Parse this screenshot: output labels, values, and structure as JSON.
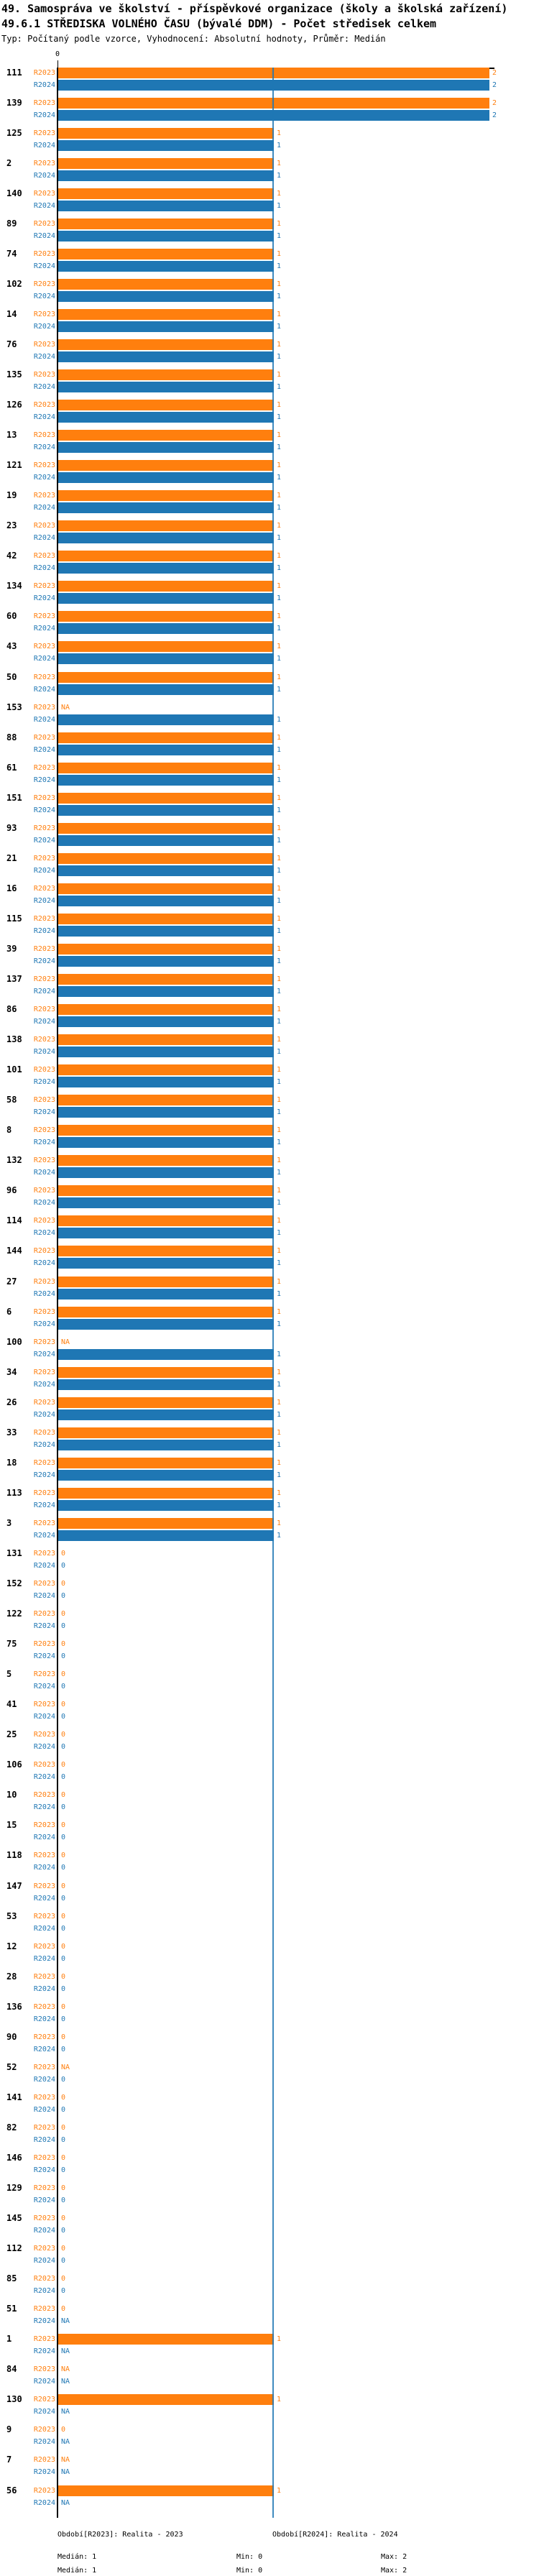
{
  "header": {
    "title_line1": "49. Samospráva ve školství - příspěvkové organizace (školy a školská zařízení)",
    "title_line2": "49.6.1 STŘEDISKA VOLNÉHO ČASU (bývalé DDM) - Počet středisek celkem",
    "meta_line": "Typ: Počítaný podle vzorce, Vyhodnocení: Absolutní hodnoty, Průměr: Medián"
  },
  "axis": {
    "zero_tick_label": "0"
  },
  "colors": {
    "r2023": "#ff7f0e",
    "r2024": "#1f77b4",
    "axis": "#000000",
    "median_line": "rgba(31,119,180,0.85)"
  },
  "legend": {
    "r2023": {
      "period": "Období[R2023]: Realita - 2023",
      "median": "Medián: 1",
      "min": "Min: 0",
      "max": "Max: 2"
    },
    "r2024": {
      "period": "Období[R2024]: Realita - 2024",
      "median": "Medián: 1",
      "min": "Min: 0",
      "max": "Max: 2"
    }
  },
  "chart_data": {
    "type": "bar",
    "orientation": "horizontal",
    "series_names": [
      "R2023",
      "R2024"
    ],
    "xlim": [
      0,
      2
    ],
    "median_line_x": 1,
    "na_text": "NA",
    "rows": [
      {
        "code": "111",
        "r2023": 2,
        "r2024": 2
      },
      {
        "code": "139",
        "r2023": 2,
        "r2024": 2
      },
      {
        "code": "125",
        "r2023": 1,
        "r2024": 1
      },
      {
        "code": "2",
        "r2023": 1,
        "r2024": 1
      },
      {
        "code": "140",
        "r2023": 1,
        "r2024": 1
      },
      {
        "code": "89",
        "r2023": 1,
        "r2024": 1
      },
      {
        "code": "74",
        "r2023": 1,
        "r2024": 1
      },
      {
        "code": "102",
        "r2023": 1,
        "r2024": 1
      },
      {
        "code": "14",
        "r2023": 1,
        "r2024": 1
      },
      {
        "code": "76",
        "r2023": 1,
        "r2024": 1
      },
      {
        "code": "135",
        "r2023": 1,
        "r2024": 1
      },
      {
        "code": "126",
        "r2023": 1,
        "r2024": 1
      },
      {
        "code": "13",
        "r2023": 1,
        "r2024": 1
      },
      {
        "code": "121",
        "r2023": 1,
        "r2024": 1
      },
      {
        "code": "19",
        "r2023": 1,
        "r2024": 1
      },
      {
        "code": "23",
        "r2023": 1,
        "r2024": 1
      },
      {
        "code": "42",
        "r2023": 1,
        "r2024": 1
      },
      {
        "code": "134",
        "r2023": 1,
        "r2024": 1
      },
      {
        "code": "60",
        "r2023": 1,
        "r2024": 1
      },
      {
        "code": "43",
        "r2023": 1,
        "r2024": 1
      },
      {
        "code": "50",
        "r2023": 1,
        "r2024": 1
      },
      {
        "code": "153",
        "r2023": "NA",
        "r2024": 1
      },
      {
        "code": "88",
        "r2023": 1,
        "r2024": 1
      },
      {
        "code": "61",
        "r2023": 1,
        "r2024": 1
      },
      {
        "code": "151",
        "r2023": 1,
        "r2024": 1
      },
      {
        "code": "93",
        "r2023": 1,
        "r2024": 1
      },
      {
        "code": "21",
        "r2023": 1,
        "r2024": 1
      },
      {
        "code": "16",
        "r2023": 1,
        "r2024": 1
      },
      {
        "code": "115",
        "r2023": 1,
        "r2024": 1
      },
      {
        "code": "39",
        "r2023": 1,
        "r2024": 1
      },
      {
        "code": "137",
        "r2023": 1,
        "r2024": 1
      },
      {
        "code": "86",
        "r2023": 1,
        "r2024": 1
      },
      {
        "code": "138",
        "r2023": 1,
        "r2024": 1
      },
      {
        "code": "101",
        "r2023": 1,
        "r2024": 1
      },
      {
        "code": "58",
        "r2023": 1,
        "r2024": 1
      },
      {
        "code": "8",
        "r2023": 1,
        "r2024": 1
      },
      {
        "code": "132",
        "r2023": 1,
        "r2024": 1
      },
      {
        "code": "96",
        "r2023": 1,
        "r2024": 1
      },
      {
        "code": "114",
        "r2023": 1,
        "r2024": 1
      },
      {
        "code": "144",
        "r2023": 1,
        "r2024": 1
      },
      {
        "code": "27",
        "r2023": 1,
        "r2024": 1
      },
      {
        "code": "6",
        "r2023": 1,
        "r2024": 1
      },
      {
        "code": "100",
        "r2023": "NA",
        "r2024": 1
      },
      {
        "code": "34",
        "r2023": 1,
        "r2024": 1
      },
      {
        "code": "26",
        "r2023": 1,
        "r2024": 1
      },
      {
        "code": "33",
        "r2023": 1,
        "r2024": 1
      },
      {
        "code": "18",
        "r2023": 1,
        "r2024": 1
      },
      {
        "code": "113",
        "r2023": 1,
        "r2024": 1
      },
      {
        "code": "3",
        "r2023": 1,
        "r2024": 1
      },
      {
        "code": "131",
        "r2023": 0,
        "r2024": 0
      },
      {
        "code": "152",
        "r2023": 0,
        "r2024": 0
      },
      {
        "code": "122",
        "r2023": 0,
        "r2024": 0
      },
      {
        "code": "75",
        "r2023": 0,
        "r2024": 0
      },
      {
        "code": "5",
        "r2023": 0,
        "r2024": 0
      },
      {
        "code": "41",
        "r2023": 0,
        "r2024": 0
      },
      {
        "code": "25",
        "r2023": 0,
        "r2024": 0
      },
      {
        "code": "106",
        "r2023": 0,
        "r2024": 0
      },
      {
        "code": "10",
        "r2023": 0,
        "r2024": 0
      },
      {
        "code": "15",
        "r2023": 0,
        "r2024": 0
      },
      {
        "code": "118",
        "r2023": 0,
        "r2024": 0
      },
      {
        "code": "147",
        "r2023": 0,
        "r2024": 0
      },
      {
        "code": "53",
        "r2023": 0,
        "r2024": 0
      },
      {
        "code": "12",
        "r2023": 0,
        "r2024": 0
      },
      {
        "code": "28",
        "r2023": 0,
        "r2024": 0
      },
      {
        "code": "136",
        "r2023": 0,
        "r2024": 0
      },
      {
        "code": "90",
        "r2023": 0,
        "r2024": 0
      },
      {
        "code": "52",
        "r2023": "NA",
        "r2024": 0
      },
      {
        "code": "141",
        "r2023": 0,
        "r2024": 0
      },
      {
        "code": "82",
        "r2023": 0,
        "r2024": 0
      },
      {
        "code": "146",
        "r2023": 0,
        "r2024": 0
      },
      {
        "code": "129",
        "r2023": 0,
        "r2024": 0
      },
      {
        "code": "145",
        "r2023": 0,
        "r2024": 0
      },
      {
        "code": "112",
        "r2023": 0,
        "r2024": 0
      },
      {
        "code": "85",
        "r2023": 0,
        "r2024": 0
      },
      {
        "code": "51",
        "r2023": 0,
        "r2024": "NA"
      },
      {
        "code": "1",
        "r2023": 1,
        "r2024": "NA"
      },
      {
        "code": "84",
        "r2023": "NA",
        "r2024": "NA"
      },
      {
        "code": "130",
        "r2023": 1,
        "r2024": "NA"
      },
      {
        "code": "9",
        "r2023": 0,
        "r2024": "NA"
      },
      {
        "code": "7",
        "r2023": "NA",
        "r2024": "NA"
      },
      {
        "code": "56",
        "r2023": 1,
        "r2024": "NA"
      }
    ]
  }
}
